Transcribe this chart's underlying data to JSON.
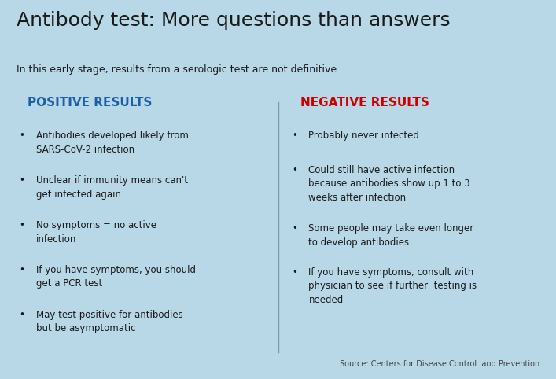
{
  "background_color": "#b8d8e8",
  "title": "Antibody test: More questions than answers",
  "subtitle": "In this early stage, results from a serologic test are not definitive.",
  "title_fontsize": 18,
  "subtitle_fontsize": 9,
  "title_color": "#1a1a1a",
  "subtitle_color": "#1a1a1a",
  "left_header": "POSITIVE RESULTS",
  "right_header": "NEGATIVE RESULTS",
  "left_header_color": "#1a5fa8",
  "right_header_color": "#cc0000",
  "header_fontsize": 11,
  "body_fontsize": 8.5,
  "body_color": "#1a1a1a",
  "divider_color": "#7a9ab0",
  "source_text": "Source: Centers for Disease Control  and Prevention",
  "source_fontsize": 7,
  "source_color": "#444444",
  "left_bullets": [
    "Antibodies developed likely from\nSARS-CoV-2 infection",
    "Unclear if immunity means can't\nget infected again",
    "No symptoms = no active\ninfection",
    "If you have symptoms, you should\nget a PCR test",
    "May test positive for antibodies\nbut be asymptomatic"
  ],
  "right_bullets": [
    "Probably never infected",
    "Could still have active infection\nbecause antibodies show up 1 to 3\nweeks after infection",
    "Some people may take even longer\nto develop antibodies",
    "If you have symptoms, consult with\nphysician to see if further  testing is\nneeded"
  ],
  "fig_width": 7.07,
  "fig_height": 4.82,
  "dpi": 100
}
